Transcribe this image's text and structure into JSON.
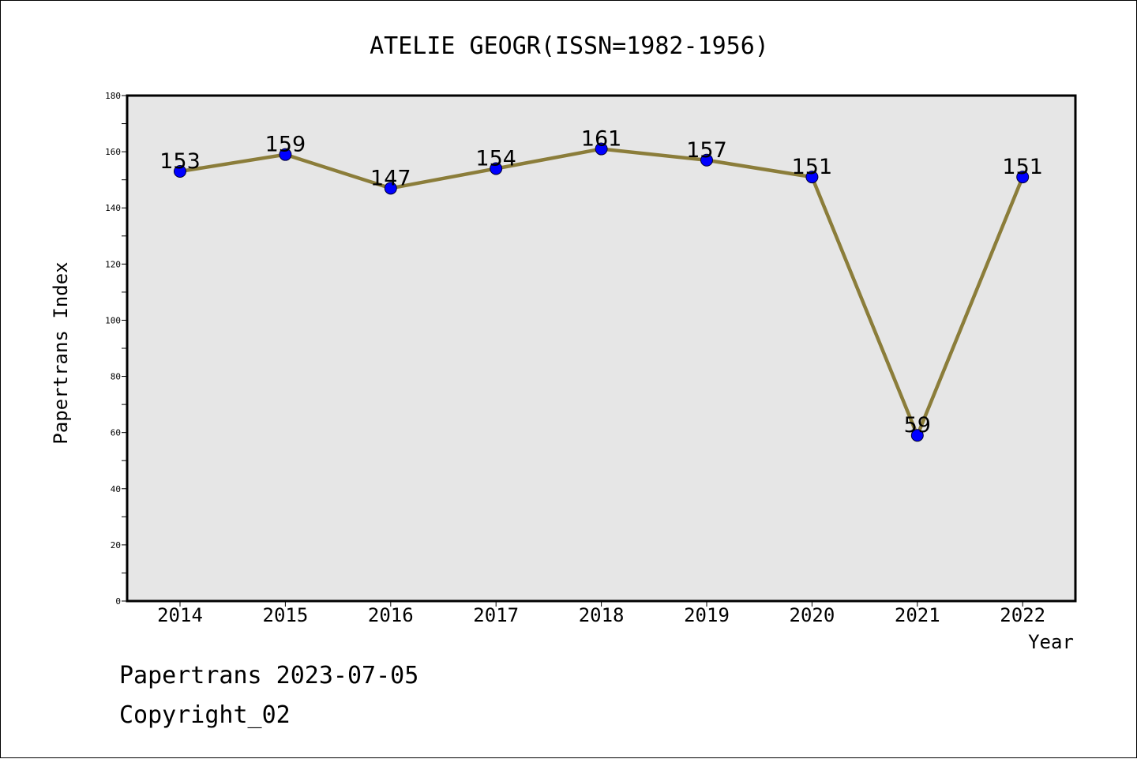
{
  "chart_data": {
    "type": "line",
    "title": "ATELIE GEOGR(ISSN=1982-1956)",
    "xlabel": "Year",
    "ylabel": "Papertrans Index",
    "x": [
      "2014",
      "2015",
      "2016",
      "2017",
      "2018",
      "2019",
      "2020",
      "2021",
      "2022"
    ],
    "series": [
      {
        "values": [
          153,
          159,
          147,
          154,
          161,
          157,
          151,
          59,
          151
        ]
      }
    ],
    "data_labels": [
      "153",
      "159",
      "147",
      "154",
      "161",
      "157",
      "151",
      "59",
      "151"
    ],
    "ylim": [
      0,
      180
    ],
    "yticks": [
      "0",
      "20",
      "40",
      "60",
      "80",
      "100",
      "120",
      "140",
      "160",
      "180"
    ],
    "grid": false,
    "line_color": "#8b7d3a",
    "marker_color": "#0000ff",
    "plot_background": "#e6e6e6"
  },
  "footer": {
    "line1": "Papertrans 2023-07-05",
    "line2": "Copyright_02"
  }
}
